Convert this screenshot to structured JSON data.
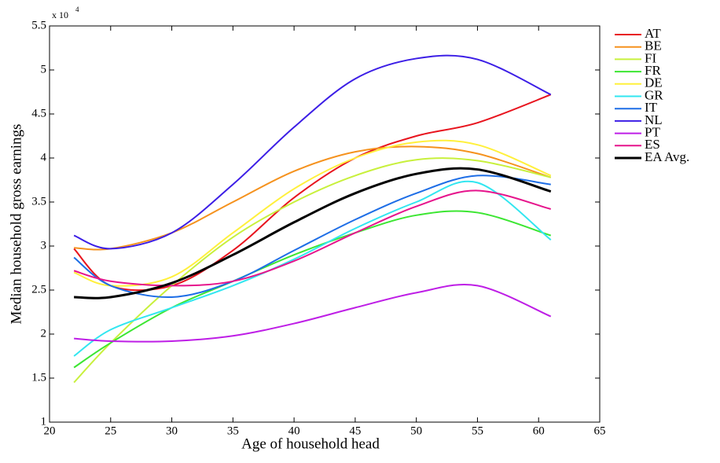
{
  "chart_data": {
    "type": "line",
    "xlabel": "Age of household head",
    "ylabel": "Median household gross earnings",
    "y_multiplier": {
      "base": "x 10",
      "exponent": "4"
    },
    "x": [
      22,
      25,
      30,
      35,
      40,
      45,
      50,
      55,
      61
    ],
    "xlim": [
      20,
      65
    ],
    "xticks": [
      20,
      25,
      30,
      35,
      40,
      45,
      50,
      55,
      60,
      65
    ],
    "ylim": [
      1,
      5.5
    ],
    "yticks": [
      1,
      1.5,
      2,
      2.5,
      3,
      3.5,
      4,
      4.5,
      5,
      5.5
    ],
    "grid": false,
    "legend": "outside-right",
    "series": [
      {
        "name": "AT",
        "color": "#e8141e",
        "values": [
          2.97,
          2.55,
          2.55,
          2.95,
          3.55,
          4.0,
          4.25,
          4.4,
          4.72
        ]
      },
      {
        "name": "BE",
        "color": "#f5921e",
        "values": [
          2.98,
          2.97,
          3.15,
          3.5,
          3.85,
          4.07,
          4.13,
          4.05,
          3.78
        ]
      },
      {
        "name": "FI",
        "color": "#c8f03c",
        "values": [
          1.45,
          1.9,
          2.55,
          3.1,
          3.5,
          3.8,
          3.98,
          3.97,
          3.78
        ]
      },
      {
        "name": "FR",
        "color": "#3ce632",
        "values": [
          1.62,
          1.9,
          2.3,
          2.6,
          2.9,
          3.15,
          3.35,
          3.38,
          3.12
        ]
      },
      {
        "name": "DE",
        "color": "#fff03c",
        "values": [
          2.7,
          2.55,
          2.65,
          3.15,
          3.65,
          4.0,
          4.18,
          4.15,
          3.8
        ]
      },
      {
        "name": "GR",
        "color": "#32e6f0",
        "values": [
          1.75,
          2.05,
          2.3,
          2.55,
          2.85,
          3.2,
          3.5,
          3.72,
          3.07
        ]
      },
      {
        "name": "IT",
        "color": "#1e6ee6",
        "values": [
          2.87,
          2.55,
          2.42,
          2.6,
          2.95,
          3.3,
          3.6,
          3.8,
          3.7
        ]
      },
      {
        "name": "NL",
        "color": "#3c1ee6",
        "values": [
          3.12,
          2.97,
          3.15,
          3.7,
          4.35,
          4.9,
          5.13,
          5.12,
          4.72
        ]
      },
      {
        "name": "PT",
        "color": "#be1ee6",
        "values": [
          1.95,
          1.92,
          1.92,
          1.98,
          2.12,
          2.3,
          2.47,
          2.55,
          2.2
        ]
      },
      {
        "name": "ES",
        "color": "#e6148c",
        "values": [
          2.72,
          2.6,
          2.55,
          2.6,
          2.83,
          3.15,
          3.45,
          3.63,
          3.42
        ]
      },
      {
        "name": "EA Avg.",
        "color": "#000000",
        "width": 3,
        "values": [
          2.42,
          2.42,
          2.58,
          2.9,
          3.27,
          3.6,
          3.82,
          3.87,
          3.62
        ]
      }
    ]
  }
}
